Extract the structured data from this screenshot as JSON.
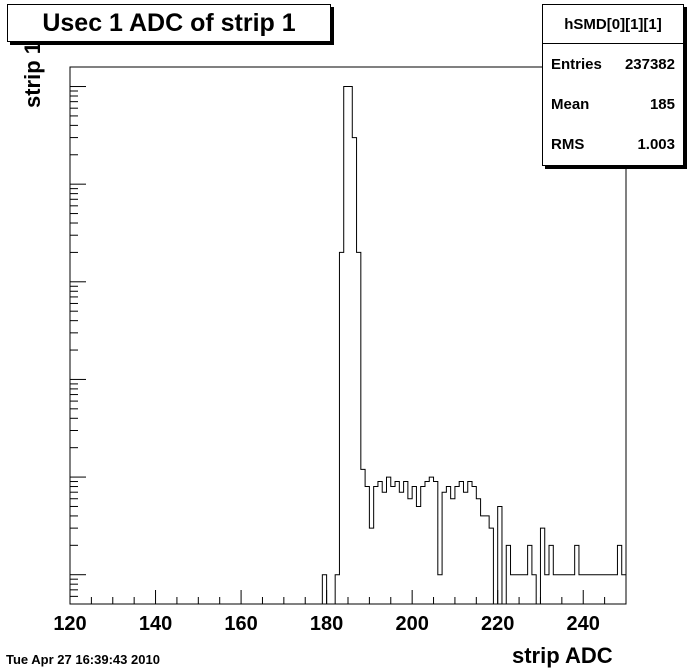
{
  "title": "Usec 1 ADC of strip 1",
  "stats": {
    "name": "hSMD[0][1][1]",
    "rows": [
      {
        "label": "Entries",
        "value": "237382"
      },
      {
        "label": "Mean",
        "value": "185"
      },
      {
        "label": "RMS",
        "value": "1.003"
      }
    ]
  },
  "timestamp": "Tue Apr 27 16:39:43 2010",
  "chart_data": {
    "type": "histogram",
    "title": "Usec 1 ADC of strip 1",
    "xlabel": "strip ADC",
    "ylabel": "strip 1",
    "xlim": [
      120,
      250
    ],
    "log_y": true,
    "ylim_log10": [
      -0.3,
      5.2
    ],
    "x_ticks": [
      120,
      140,
      160,
      180,
      200,
      220,
      240
    ],
    "grid": false,
    "bins": [
      {
        "x": 179,
        "y": 1
      },
      {
        "x": 180,
        "y": 0
      },
      {
        "x": 181,
        "y": 0
      },
      {
        "x": 182,
        "y": 1
      },
      {
        "x": 183,
        "y": 2000
      },
      {
        "x": 184,
        "y": 100000
      },
      {
        "x": 185,
        "y": 100000
      },
      {
        "x": 186,
        "y": 30000
      },
      {
        "x": 187,
        "y": 2000
      },
      {
        "x": 188,
        "y": 12
      },
      {
        "x": 189,
        "y": 8
      },
      {
        "x": 190,
        "y": 3
      },
      {
        "x": 191,
        "y": 8
      },
      {
        "x": 192,
        "y": 9
      },
      {
        "x": 193,
        "y": 7
      },
      {
        "x": 194,
        "y": 10
      },
      {
        "x": 195,
        "y": 8
      },
      {
        "x": 196,
        "y": 9
      },
      {
        "x": 197,
        "y": 7
      },
      {
        "x": 198,
        "y": 9
      },
      {
        "x": 199,
        "y": 6
      },
      {
        "x": 200,
        "y": 8
      },
      {
        "x": 201,
        "y": 5
      },
      {
        "x": 202,
        "y": 8
      },
      {
        "x": 203,
        "y": 9
      },
      {
        "x": 204,
        "y": 10
      },
      {
        "x": 205,
        "y": 9
      },
      {
        "x": 206,
        "y": 1
      },
      {
        "x": 207,
        "y": 7
      },
      {
        "x": 208,
        "y": 8
      },
      {
        "x": 209,
        "y": 6
      },
      {
        "x": 210,
        "y": 8
      },
      {
        "x": 211,
        "y": 9
      },
      {
        "x": 212,
        "y": 7
      },
      {
        "x": 213,
        "y": 9
      },
      {
        "x": 214,
        "y": 8
      },
      {
        "x": 215,
        "y": 6
      },
      {
        "x": 216,
        "y": 4
      },
      {
        "x": 217,
        "y": 4
      },
      {
        "x": 218,
        "y": 3
      },
      {
        "x": 219,
        "y": 0
      },
      {
        "x": 220,
        "y": 5
      },
      {
        "x": 221,
        "y": 0
      },
      {
        "x": 222,
        "y": 2
      },
      {
        "x": 223,
        "y": 1
      },
      {
        "x": 224,
        "y": 1
      },
      {
        "x": 225,
        "y": 1
      },
      {
        "x": 226,
        "y": 1
      },
      {
        "x": 227,
        "y": 2
      },
      {
        "x": 228,
        "y": 1
      },
      {
        "x": 229,
        "y": 0
      },
      {
        "x": 230,
        "y": 3
      },
      {
        "x": 231,
        "y": 1
      },
      {
        "x": 232,
        "y": 2
      },
      {
        "x": 233,
        "y": 1
      },
      {
        "x": 234,
        "y": 1
      },
      {
        "x": 235,
        "y": 1
      },
      {
        "x": 236,
        "y": 1
      },
      {
        "x": 237,
        "y": 1
      },
      {
        "x": 238,
        "y": 2
      },
      {
        "x": 239,
        "y": 1
      },
      {
        "x": 240,
        "y": 1
      },
      {
        "x": 241,
        "y": 1
      },
      {
        "x": 242,
        "y": 1
      },
      {
        "x": 243,
        "y": 1
      },
      {
        "x": 244,
        "y": 1
      },
      {
        "x": 245,
        "y": 1
      },
      {
        "x": 246,
        "y": 1
      },
      {
        "x": 247,
        "y": 1
      },
      {
        "x": 248,
        "y": 2
      },
      {
        "x": 249,
        "y": 1
      }
    ]
  }
}
